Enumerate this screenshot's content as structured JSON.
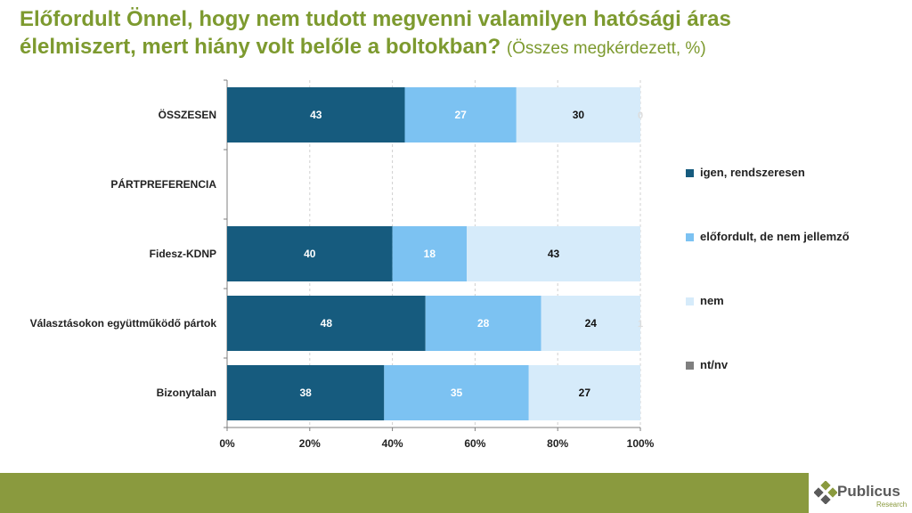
{
  "title": {
    "line1": "Előfordult Önnel, hogy nem tudott megvenni valamilyen hatósági áras",
    "line2": "élelmiszert, mert hiány volt belőle a boltokban?",
    "subtitle": "(Összes megkérdezett, %)"
  },
  "colors": {
    "igen": "#165b7e",
    "elofordult": "#7cc2f2",
    "nem": "#d6ebfa",
    "ntnv": "#7f7f7f",
    "accent": "#7d9a2f",
    "footer": "#8a9a3e"
  },
  "chart_data": {
    "type": "bar",
    "orientation": "horizontal",
    "stacked": true,
    "categories": [
      "ÖSSZESEN",
      "PÁRTPREFERENCIA",
      "Fidesz-KDNP",
      "Választásokon együttműködő pártok",
      "Bizonytalan"
    ],
    "series": [
      {
        "name": "igen, rendszeresen",
        "values": [
          43,
          null,
          40,
          48,
          38
        ]
      },
      {
        "name": "előfordult, de nem jellemző",
        "values": [
          27,
          null,
          18,
          28,
          35
        ]
      },
      {
        "name": "nem",
        "values": [
          30,
          null,
          43,
          24,
          27
        ]
      },
      {
        "name": "nt/nv",
        "values": [
          0,
          null,
          0,
          1,
          0
        ]
      }
    ],
    "data_labels": [
      [
        "43",
        "27",
        "30",
        "0"
      ],
      [],
      [
        "40",
        "18",
        "43"
      ],
      [
        "48",
        "28",
        "24",
        "1"
      ],
      [
        "38",
        "35",
        "27"
      ]
    ],
    "xlim": [
      0,
      100
    ],
    "ticks": [
      "0%",
      "20%",
      "40%",
      "60%",
      "80%",
      "100%"
    ],
    "legend_position": "right"
  },
  "footer": {
    "logo_name": "Publicus",
    "logo_sub": "Research"
  }
}
